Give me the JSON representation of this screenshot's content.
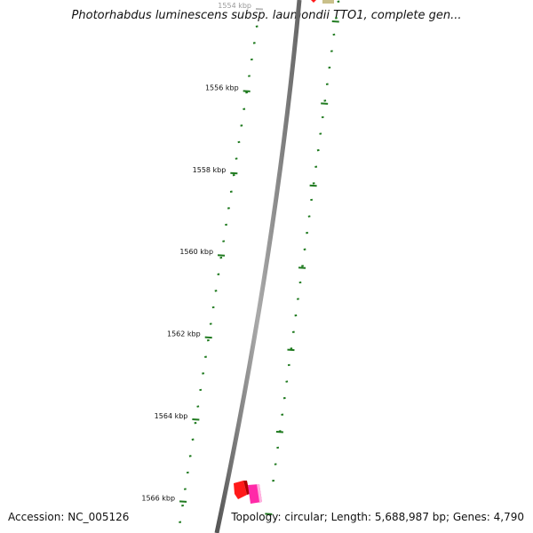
{
  "title": "Photorhabdus luminescens subsp. laumondii TTO1, complete gen...",
  "footer": {
    "accession": "Accession: NC_005126",
    "summary": "Topology: circular; Length: 5,688,987 bp; Genes: 4,790"
  },
  "colors": {
    "tick": "#1f7a1f",
    "backbone": "#777777",
    "gene_red": "#ff1a1a",
    "gene_magenta": "#ff2aa8",
    "gene_olive": "#c9c08a"
  },
  "scale_labels": [
    {
      "label": "1554 kbp",
      "kbp": 1554,
      "faded": true
    },
    {
      "label": "1556 kbp",
      "kbp": 1556
    },
    {
      "label": "1558 kbp",
      "kbp": 1558
    },
    {
      "label": "1560 kbp",
      "kbp": 1560
    },
    {
      "label": "1562 kbp",
      "kbp": 1562
    },
    {
      "label": "1564 kbp",
      "kbp": 1564
    },
    {
      "label": "1566 kbp",
      "kbp": 1566
    }
  ]
}
